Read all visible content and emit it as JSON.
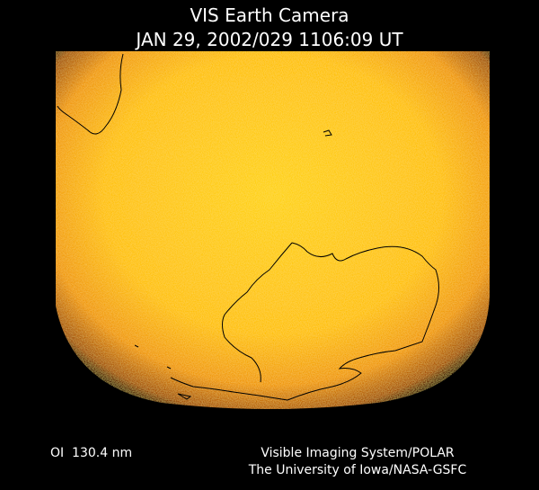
{
  "header": {
    "title": "VIS Earth Camera",
    "subtitle": "JAN 29, 2002/029 1106:09 UT"
  },
  "footer": {
    "left": "OI  130.4 nm",
    "right": [
      "Visible Imaging System/POLAR",
      "The University of Iowa/NASA-GSFC"
    ]
  }
}
